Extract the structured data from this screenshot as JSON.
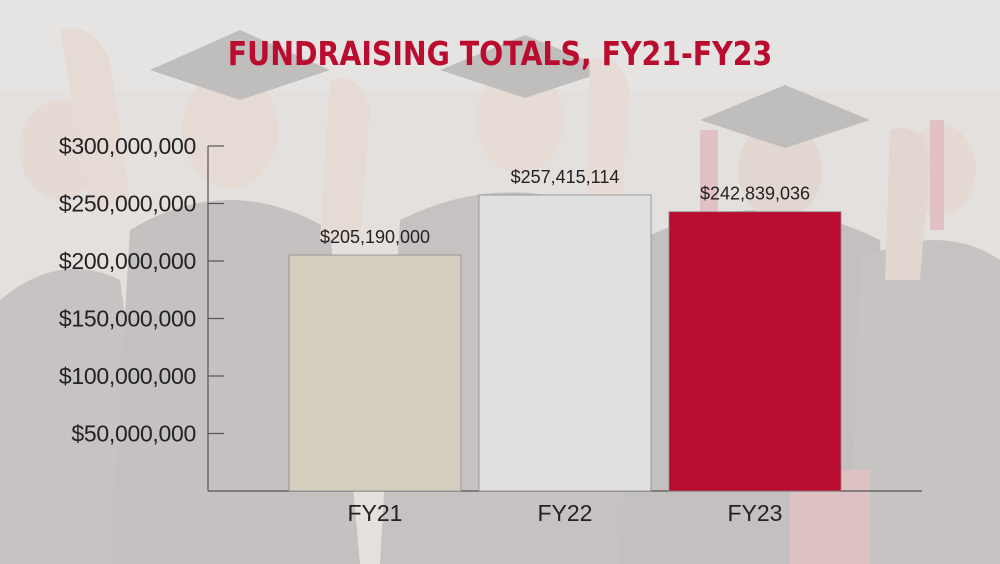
{
  "chart_data": {
    "type": "bar",
    "title": "FUNDRAISING TOTALS, FY21-FY23",
    "categories": [
      "FY21",
      "FY22",
      "FY23"
    ],
    "values": [
      205190000,
      257415114,
      242839036
    ],
    "value_labels": [
      "$205,190,000",
      "$257,415,114",
      "$242,839,036"
    ],
    "bar_colors": [
      "#d6cfc0",
      "#e0e0e0",
      "#ba0c2f"
    ],
    "ylim": [
      0,
      300000000
    ],
    "yticks": [
      50000000,
      100000000,
      150000000,
      200000000,
      250000000,
      300000000
    ],
    "ytick_labels": [
      "$50,000,000",
      "$100,000,000",
      "$150,000,000",
      "$200,000,000",
      "$250,000,000",
      "$300,000,000"
    ],
    "xlabel": "",
    "ylabel": "",
    "grid": false,
    "title_color": "#ba0c2f"
  }
}
